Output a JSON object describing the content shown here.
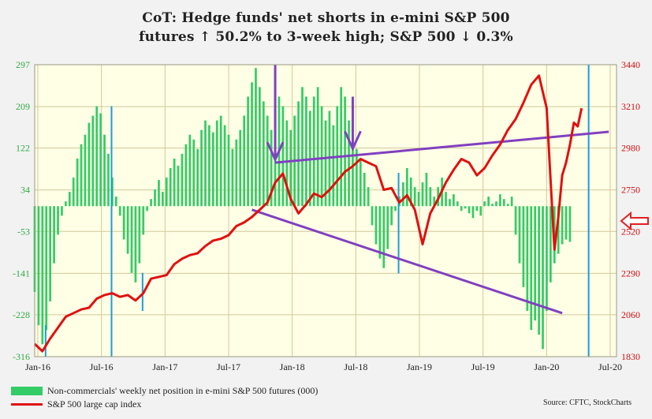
{
  "chart_data": {
    "type": "bar+line",
    "title_line1": "CoT: Hedge funds' net shorts in e-mini S&P 500",
    "title_line2": "futures ↑ 50.2% to 3-week high; S&P 500 ↓ 0.3%",
    "x_ticks": [
      "Jan-16",
      "Jul-16",
      "Jan-17",
      "Jul-17",
      "Jan-18",
      "Jul-18",
      "Jan-19",
      "Jul-19",
      "Jan-20",
      "Jul-20"
    ],
    "y_left_ticks": [
      297,
      209,
      122,
      34,
      -53,
      -141,
      -228,
      -316
    ],
    "y_left_lim": [
      -316,
      297
    ],
    "y_right_ticks": [
      3440,
      3210,
      2980,
      2750,
      2520,
      2290,
      2060,
      1830
    ],
    "y_right_lim": [
      1830,
      3440
    ],
    "series": [
      {
        "name": "Non-commercials' weekly net position in e-mini S&P 500 futures (000)",
        "kind": "bar",
        "color": "#33cc66",
        "points": [
          [
            0,
            -180
          ],
          [
            1,
            -250
          ],
          [
            2,
            -290
          ],
          [
            3,
            -260
          ],
          [
            4,
            -200
          ],
          [
            5,
            -120
          ],
          [
            6,
            -60
          ],
          [
            7,
            -20
          ],
          [
            8,
            10
          ],
          [
            9,
            30
          ],
          [
            10,
            60
          ],
          [
            11,
            100
          ],
          [
            12,
            130
          ],
          [
            13,
            150
          ],
          [
            14,
            175
          ],
          [
            15,
            190
          ],
          [
            16,
            210
          ],
          [
            17,
            195
          ],
          [
            18,
            150
          ],
          [
            19,
            110
          ],
          [
            20,
            60
          ],
          [
            21,
            20
          ],
          [
            22,
            -20
          ],
          [
            23,
            -70
          ],
          [
            24,
            -100
          ],
          [
            25,
            -140
          ],
          [
            26,
            -160
          ],
          [
            27,
            -120
          ],
          [
            28,
            -60
          ],
          [
            29,
            -10
          ],
          [
            30,
            15
          ],
          [
            31,
            35
          ],
          [
            32,
            55
          ],
          [
            33,
            30
          ],
          [
            34,
            60
          ],
          [
            35,
            80
          ],
          [
            36,
            100
          ],
          [
            37,
            85
          ],
          [
            38,
            110
          ],
          [
            39,
            130
          ],
          [
            40,
            150
          ],
          [
            41,
            140
          ],
          [
            42,
            120
          ],
          [
            43,
            160
          ],
          [
            44,
            180
          ],
          [
            45,
            170
          ],
          [
            46,
            155
          ],
          [
            47,
            180
          ],
          [
            48,
            190
          ],
          [
            49,
            170
          ],
          [
            50,
            150
          ],
          [
            51,
            120
          ],
          [
            52,
            140
          ],
          [
            53,
            160
          ],
          [
            54,
            190
          ],
          [
            55,
            230
          ],
          [
            56,
            260
          ],
          [
            57,
            290
          ],
          [
            58,
            250
          ],
          [
            59,
            220
          ],
          [
            60,
            190
          ],
          [
            61,
            160
          ],
          [
            62,
            200
          ],
          [
            63,
            230
          ],
          [
            64,
            210
          ],
          [
            65,
            180
          ],
          [
            66,
            160
          ],
          [
            67,
            190
          ],
          [
            68,
            220
          ],
          [
            69,
            250
          ],
          [
            70,
            230
          ],
          [
            71,
            200
          ],
          [
            72,
            230
          ],
          [
            73,
            250
          ],
          [
            74,
            210
          ],
          [
            75,
            180
          ],
          [
            76,
            200
          ],
          [
            77,
            170
          ],
          [
            78,
            210
          ],
          [
            79,
            250
          ],
          [
            80,
            230
          ],
          [
            81,
            180
          ],
          [
            82,
            150
          ],
          [
            83,
            120
          ],
          [
            84,
            100
          ],
          [
            85,
            70
          ],
          [
            86,
            40
          ],
          [
            87,
            -40
          ],
          [
            88,
            -80
          ],
          [
            89,
            -110
          ],
          [
            90,
            -130
          ],
          [
            91,
            -90
          ],
          [
            92,
            -40
          ],
          [
            93,
            -10
          ],
          [
            94,
            20
          ],
          [
            95,
            50
          ],
          [
            96,
            80
          ],
          [
            97,
            60
          ],
          [
            98,
            40
          ],
          [
            99,
            30
          ],
          [
            100,
            50
          ],
          [
            101,
            70
          ],
          [
            102,
            40
          ],
          [
            103,
            20
          ],
          [
            104,
            40
          ],
          [
            105,
            60
          ],
          [
            106,
            30
          ],
          [
            107,
            15
          ],
          [
            108,
            25
          ],
          [
            109,
            10
          ],
          [
            110,
            -10
          ],
          [
            111,
            -5
          ],
          [
            112,
            -15
          ],
          [
            113,
            -25
          ],
          [
            114,
            -10
          ],
          [
            115,
            -20
          ],
          [
            116,
            10
          ],
          [
            117,
            20
          ],
          [
            118,
            5
          ],
          [
            119,
            10
          ],
          [
            120,
            25
          ],
          [
            121,
            15
          ],
          [
            122,
            5
          ],
          [
            123,
            20
          ],
          [
            124,
            -60
          ],
          [
            125,
            -120
          ],
          [
            126,
            -170
          ],
          [
            127,
            -220
          ],
          [
            128,
            -260
          ],
          [
            129,
            -240
          ],
          [
            130,
            -270
          ],
          [
            131,
            -300
          ],
          [
            132,
            -220
          ],
          [
            133,
            -160
          ],
          [
            134,
            -120
          ],
          [
            135,
            -100
          ],
          [
            136,
            -80
          ],
          [
            137,
            -70
          ],
          [
            138,
            -75
          ]
        ]
      },
      {
        "name": "S&P 500 large cap index",
        "kind": "line",
        "color": "#e01010",
        "points": [
          [
            0,
            1900
          ],
          [
            2,
            1860
          ],
          [
            4,
            1930
          ],
          [
            6,
            1990
          ],
          [
            8,
            2050
          ],
          [
            10,
            2070
          ],
          [
            12,
            2090
          ],
          [
            14,
            2100
          ],
          [
            16,
            2150
          ],
          [
            18,
            2170
          ],
          [
            20,
            2180
          ],
          [
            22,
            2160
          ],
          [
            24,
            2170
          ],
          [
            26,
            2140
          ],
          [
            28,
            2180
          ],
          [
            30,
            2260
          ],
          [
            32,
            2270
          ],
          [
            34,
            2280
          ],
          [
            36,
            2340
          ],
          [
            38,
            2370
          ],
          [
            40,
            2390
          ],
          [
            42,
            2400
          ],
          [
            44,
            2440
          ],
          [
            46,
            2470
          ],
          [
            48,
            2480
          ],
          [
            50,
            2500
          ],
          [
            52,
            2550
          ],
          [
            54,
            2570
          ],
          [
            56,
            2600
          ],
          [
            58,
            2640
          ],
          [
            60,
            2680
          ],
          [
            62,
            2790
          ],
          [
            64,
            2840
          ],
          [
            66,
            2700
          ],
          [
            68,
            2620
          ],
          [
            70,
            2670
          ],
          [
            72,
            2730
          ],
          [
            74,
            2710
          ],
          [
            76,
            2750
          ],
          [
            78,
            2800
          ],
          [
            80,
            2850
          ],
          [
            82,
            2880
          ],
          [
            84,
            2920
          ],
          [
            86,
            2900
          ],
          [
            88,
            2880
          ],
          [
            90,
            2750
          ],
          [
            92,
            2760
          ],
          [
            94,
            2680
          ],
          [
            96,
            2720
          ],
          [
            98,
            2640
          ],
          [
            100,
            2450
          ],
          [
            102,
            2620
          ],
          [
            104,
            2700
          ],
          [
            106,
            2790
          ],
          [
            108,
            2860
          ],
          [
            110,
            2920
          ],
          [
            112,
            2900
          ],
          [
            114,
            2830
          ],
          [
            116,
            2870
          ],
          [
            118,
            2940
          ],
          [
            120,
            3000
          ],
          [
            122,
            3080
          ],
          [
            124,
            3140
          ],
          [
            126,
            3230
          ],
          [
            128,
            3330
          ],
          [
            130,
            3380
          ],
          [
            132,
            3200
          ],
          [
            133,
            2800
          ],
          [
            134,
            2420
          ],
          [
            135,
            2600
          ],
          [
            136,
            2830
          ],
          [
            137,
            2900
          ],
          [
            138,
            3000
          ],
          [
            139,
            3120
          ],
          [
            140,
            3100
          ],
          [
            141,
            3200
          ]
        ]
      }
    ],
    "trend_lines": [
      {
        "color": "#8040c0",
        "from": [
          62,
          2900
        ],
        "to": [
          148,
          3070
        ]
      },
      {
        "color": "#8040c0",
        "from": [
          56,
          2640
        ],
        "to": [
          136,
          2070
        ]
      }
    ],
    "legend": {
      "bar_label": "Non-commercials' weekly net position in e-mini S&P 500 futures (000)",
      "line_label": "S&P 500 large cap index"
    },
    "source": "Source: CFTC, StockCharts",
    "colors": {
      "left_axis_text": "#33aa44",
      "right_axis_text": "#d01010",
      "plot_bg": "#ffffe6",
      "grid": "#d0c89a",
      "highlight_line": "#1e9cd7",
      "trend": "#8040c0",
      "bar": "#33cc66",
      "line": "#e01010"
    }
  }
}
